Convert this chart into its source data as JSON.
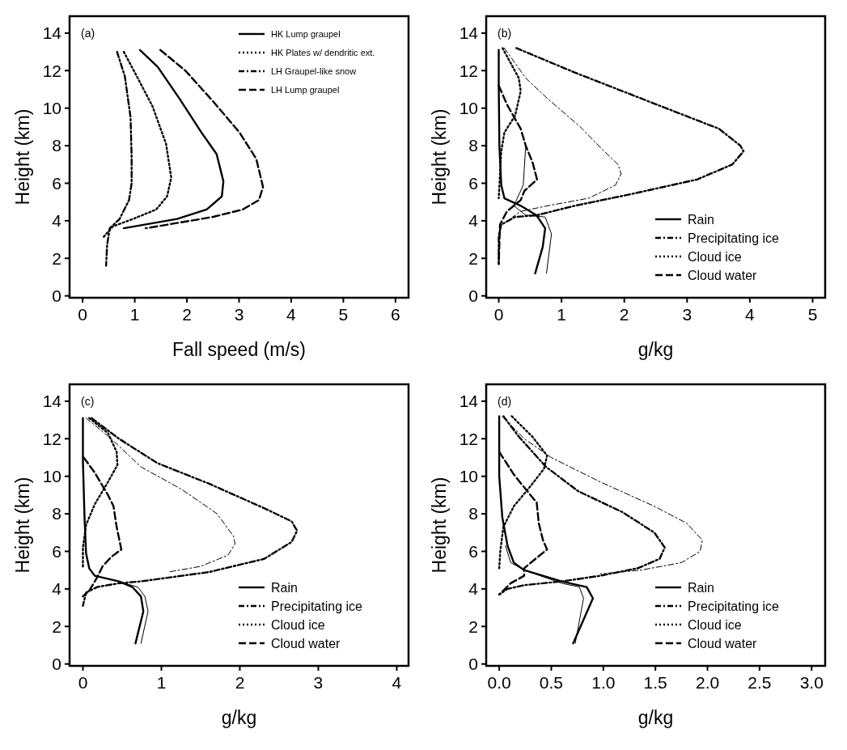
{
  "chart_data": [
    {
      "type": "line",
      "title": "(a)",
      "xlabel": "Fall speed (m/s)",
      "ylabel": "Height (km)",
      "xlim": [
        -0.25,
        6.25
      ],
      "ylim": [
        -0.1,
        14.9
      ],
      "xticks": [
        0,
        1,
        2,
        3,
        4,
        5,
        6
      ],
      "yticks": [
        0,
        2,
        4,
        6,
        8,
        10,
        12,
        14
      ],
      "legend": "top right",
      "grid": false,
      "series": [
        {
          "name": "HK Lump graupel",
          "color": "#000000",
          "line_style": "solid",
          "x": [
            1.1,
            1.44,
            1.86,
            2.28,
            2.57,
            2.7,
            2.67,
            2.38,
            1.81,
            0.79
          ],
          "values": [
            13.1,
            12.2,
            10.5,
            8.7,
            7.55,
            6.1,
            5.3,
            4.6,
            4.1,
            3.6
          ]
        },
        {
          "name": "HK Plates w/ dendritic ext.",
          "color": "#000000",
          "line_style": "dotted",
          "x": [
            0.79,
            1.02,
            1.34,
            1.6,
            1.7,
            1.62,
            1.41,
            0.97,
            0.58,
            0.39
          ],
          "values": [
            13.0,
            11.8,
            10.1,
            8.1,
            6.3,
            5.3,
            4.6,
            4.1,
            3.7,
            3.1
          ]
        },
        {
          "name": "LH Graupel-like snow",
          "color": "#000000",
          "line_style": "dashdot",
          "x": [
            0.66,
            0.81,
            0.92,
            0.94,
            0.94,
            0.89,
            0.71,
            0.52,
            0.47,
            0.45
          ],
          "values": [
            13.0,
            11.7,
            9.5,
            7.4,
            6.0,
            5.1,
            4.1,
            3.6,
            2.7,
            1.6
          ]
        },
        {
          "name": "LH Lump graupel",
          "color": "#000000",
          "line_style": "dashed",
          "x": [
            1.49,
            1.97,
            2.49,
            3.01,
            3.33,
            3.46,
            3.38,
            3.07,
            2.49,
            1.21
          ],
          "values": [
            13.1,
            12.0,
            10.4,
            8.7,
            7.3,
            5.8,
            5.1,
            4.6,
            4.2,
            3.6
          ]
        }
      ]
    },
    {
      "type": "line",
      "title": "(b)",
      "xlabel": "g/kg",
      "ylabel": "Height (km)",
      "xlim": [
        -0.2,
        5.2
      ],
      "ylim": [
        -0.1,
        14.9
      ],
      "xticks": [
        0,
        1,
        2,
        3,
        4,
        5
      ],
      "yticks": [
        0,
        2,
        4,
        6,
        8,
        10,
        12,
        14
      ],
      "legend": "bottom right",
      "grid": false,
      "series": [
        {
          "name": "Rain",
          "color": "#000000",
          "line_style": "solid",
          "x": [
            0.58,
            0.7,
            0.74,
            0.6,
            0.35,
            0.09,
            0.04,
            0.01,
            0,
            0
          ],
          "values": [
            1.2,
            2.6,
            3.6,
            4.3,
            4.8,
            5.2,
            5.9,
            8.0,
            11.2,
            13.1
          ]
        },
        {
          "name": "Precipitating ice",
          "color": "#000000",
          "line_style": "dashdot",
          "x": [
            0.28,
            1.21,
            2.51,
            3.51,
            3.85,
            3.9,
            3.72,
            3.16,
            2.08,
            1.21,
            0.61,
            0.26,
            0.04,
            0,
            0
          ],
          "values": [
            13.2,
            11.9,
            10.2,
            8.9,
            8.0,
            7.7,
            7.0,
            6.2,
            5.4,
            4.8,
            4.3,
            4.2,
            3.8,
            3.2,
            1.7
          ]
        },
        {
          "name": "Cloud ice",
          "color": "#000000",
          "line_style": "dotted",
          "x": [
            0.06,
            0.32,
            0.35,
            0.26,
            0.09,
            0.04,
            0.02,
            0
          ],
          "values": [
            13.2,
            11.6,
            10.9,
            9.6,
            8.7,
            7.7,
            6.5,
            5.2
          ]
        },
        {
          "name": "Cloud water",
          "color": "#000000",
          "line_style": "dashed",
          "x": [
            0,
            0.13,
            0.35,
            0.43,
            0.54,
            0.61,
            0.41,
            0.35,
            0.13,
            0.02,
            0
          ],
          "values": [
            11.2,
            10.2,
            8.9,
            8.0,
            7.1,
            6.2,
            5.6,
            5.1,
            4.5,
            3.8,
            1.7
          ]
        },
        {
          "color": "#000000",
          "line_style": "dashdot",
          "x": [
            0.09,
            0.43,
            0.78,
            1.3,
            1.65,
            1.9,
            1.95,
            1.86,
            1.43,
            0.78,
            0.35,
            0.22
          ],
          "values": [
            13.2,
            11.6,
            10.5,
            9.0,
            7.8,
            7.0,
            6.5,
            5.9,
            5.2,
            4.8,
            4.5,
            4.2
          ]
        },
        {
          "color": "#000000",
          "line_style": "solid",
          "x": [
            0.76,
            0.84,
            0.74,
            0.43,
            0.24,
            0.39,
            0.43
          ],
          "values": [
            1.2,
            3.3,
            4.2,
            4.3,
            4.8,
            5.9,
            8.0
          ]
        }
      ]
    },
    {
      "type": "line",
      "title": "(c)",
      "xlabel": "g/kg",
      "ylabel": "Height (km)",
      "xlim": [
        -0.17,
        4.15
      ],
      "ylim": [
        -0.1,
        14.9
      ],
      "xticks": [
        0,
        1,
        2,
        3,
        4
      ],
      "yticks": [
        0,
        2,
        4,
        6,
        8,
        10,
        12,
        14
      ],
      "legend": "bottom right",
      "grid": false,
      "series": [
        {
          "name": "Rain",
          "color": "#000000",
          "line_style": "solid",
          "x": [
            0.67,
            0.77,
            0.74,
            0.63,
            0.46,
            0.15,
            0.08,
            0.04,
            0.02,
            0,
            0
          ],
          "values": [
            1.1,
            2.8,
            3.6,
            4.1,
            4.4,
            4.7,
            5.1,
            5.9,
            7.9,
            10.8,
            13.1
          ]
        },
        {
          "name": "Precipitating ice",
          "color": "#000000",
          "line_style": "dashdot",
          "x": [
            0.11,
            0.46,
            0.95,
            1.61,
            2.31,
            2.66,
            2.73,
            2.66,
            2.31,
            1.61,
            0.74,
            0.46,
            0.18,
            0.04,
            0
          ],
          "values": [
            13.1,
            12.0,
            10.7,
            9.6,
            8.3,
            7.6,
            7.1,
            6.5,
            5.6,
            4.9,
            4.4,
            4.3,
            4.1,
            3.8,
            3.1
          ]
        },
        {
          "name": "Cloud ice",
          "color": "#000000",
          "line_style": "dotted",
          "x": [
            0.08,
            0.32,
            0.43,
            0.44,
            0.32,
            0.15,
            0.04,
            0,
            0
          ],
          "values": [
            13.1,
            12.3,
            11.3,
            10.6,
            9.7,
            8.5,
            7.4,
            6.2,
            5.1
          ]
        },
        {
          "name": "Cloud water",
          "color": "#000000",
          "line_style": "dashed",
          "x": [
            0.01,
            0.15,
            0.32,
            0.39,
            0.43,
            0.49,
            0.36,
            0.25,
            0.18,
            0.08,
            0
          ],
          "values": [
            11.0,
            10.2,
            9.0,
            8.4,
            7.3,
            6.1,
            5.7,
            5.2,
            4.6,
            3.9,
            3.6
          ]
        },
        {
          "color": "#000000",
          "line_style": "dashdot",
          "x": [
            0.04,
            0.36,
            0.74,
            1.26,
            1.71,
            1.92,
            1.94,
            1.85,
            1.5,
            1.09
          ],
          "values": [
            13.1,
            12.0,
            10.5,
            9.3,
            8.0,
            6.8,
            6.4,
            5.8,
            5.2,
            4.9
          ]
        },
        {
          "color": "#000000",
          "line_style": "solid",
          "x": [
            0.74,
            0.83,
            0.79,
            0.7,
            0.53
          ],
          "values": [
            1.1,
            2.8,
            3.6,
            4.1,
            4.3
          ]
        }
      ]
    },
    {
      "type": "line",
      "title": "(d)",
      "xlabel": "g/kg",
      "ylabel": "Height (km)",
      "xlim": [
        -0.125,
        3.13
      ],
      "ylim": [
        -0.1,
        14.9
      ],
      "xticks": [
        {
          "value": 0,
          "label": "0.0"
        },
        {
          "value": 0.5,
          "label": "0.5"
        },
        {
          "value": 1,
          "label": "1.0"
        },
        {
          "value": 1.5,
          "label": "1.5"
        },
        {
          "value": 2,
          "label": "2.0"
        },
        {
          "value": 2.5,
          "label": "2.5"
        },
        {
          "value": 3,
          "label": "3.0"
        }
      ],
      "yticks": [
        0,
        2,
        4,
        6,
        8,
        10,
        12,
        14
      ],
      "legend": "bottom right",
      "grid": false,
      "series": [
        {
          "name": "Rain",
          "color": "#000000",
          "line_style": "solid",
          "x": [
            0.71,
            0.9,
            0.84,
            0.6,
            0.24,
            0.14,
            0.08,
            0.03,
            0,
            0
          ],
          "values": [
            1.1,
            3.5,
            4.1,
            4.4,
            5.0,
            5.4,
            6.3,
            7.8,
            10.0,
            13.2
          ]
        },
        {
          "name": "Precipitating ice",
          "color": "#000000",
          "line_style": "dashdot",
          "x": [
            0.04,
            0.19,
            0.45,
            0.76,
            1.18,
            1.49,
            1.59,
            1.54,
            1.33,
            0.97,
            0.6,
            0.24,
            0.08,
            0
          ],
          "values": [
            13.2,
            12.1,
            10.5,
            9.2,
            8.1,
            7.0,
            6.2,
            5.6,
            5.1,
            4.7,
            4.4,
            4.2,
            4.0,
            3.7
          ]
        },
        {
          "name": "Cloud ice",
          "color": "#000000",
          "line_style": "dotted",
          "x": [
            0.12,
            0.32,
            0.46,
            0.43,
            0.29,
            0.14,
            0.04,
            0.01,
            0
          ],
          "values": [
            13.2,
            12.1,
            11.1,
            10.4,
            9.4,
            8.4,
            7.3,
            6.0,
            5.1
          ]
        },
        {
          "name": "Cloud water",
          "color": "#000000",
          "line_style": "dashed",
          "x": [
            0,
            0.14,
            0.27,
            0.36,
            0.38,
            0.42,
            0.46,
            0.37,
            0.24,
            0.24,
            0.11,
            0
          ],
          "values": [
            11.3,
            10.1,
            9.2,
            8.6,
            7.5,
            6.6,
            6.1,
            5.7,
            5.1,
            4.7,
            4.3,
            3.7
          ]
        },
        {
          "color": "#000000",
          "line_style": "dashdot",
          "x": [
            0.03,
            0.24,
            0.5,
            0.97,
            1.49,
            1.8,
            1.95,
            1.93,
            1.75,
            1.36,
            0.97
          ],
          "values": [
            13.2,
            12.0,
            11.0,
            9.7,
            8.4,
            7.5,
            6.6,
            6.0,
            5.4,
            5.0,
            4.8
          ]
        },
        {
          "color": "#000000",
          "line_style": "solid",
          "x": [
            0.73,
            0.81,
            0.77,
            0.6,
            0.24,
            0.11,
            0.06
          ],
          "values": [
            1.1,
            3.5,
            4.1,
            4.3,
            5.0,
            5.4,
            6.3
          ]
        }
      ]
    }
  ]
}
